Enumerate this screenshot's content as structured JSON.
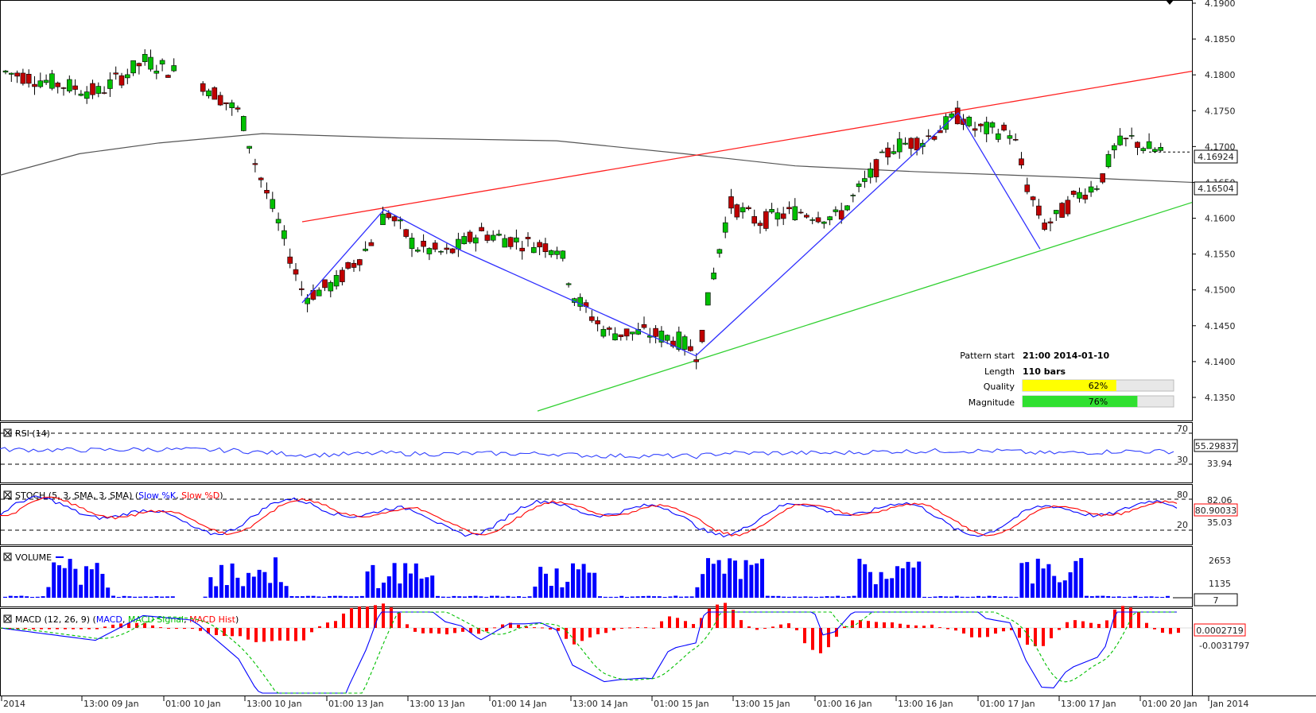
{
  "chart_data": [
    {
      "type": "candlestick",
      "panel": "price",
      "y_ticks": [
        "4.1900",
        "4.1850",
        "4.1800",
        "4.1750",
        "4.1700",
        "4.1650",
        "4.1600",
        "4.1550",
        "4.1500",
        "4.1450",
        "4.1400",
        "4.1350"
      ],
      "ylim": [
        4.133,
        4.19
      ],
      "current_price_label": "4.16924",
      "current_price": 4.16924,
      "ma_label": "4.16504",
      "ma_value": 4.16504,
      "pattern_info": {
        "start_label": "Pattern start",
        "start_value": "21:00 2014-01-10",
        "length_label": "Length",
        "length_value": "110 bars",
        "quality_label": "Quality",
        "quality_value": "62%",
        "quality_fraction": 0.62,
        "magnitude_label": "Magnitude",
        "magnitude_value": "76%",
        "magnitude_fraction": 0.76
      },
      "colors": {
        "up": "#00c000",
        "down": "#c00000",
        "resistance": "#ff2020",
        "support": "#30d030",
        "zigzag": "#3030ff",
        "ma": "#555555",
        "quality": "#ffff00",
        "magnitude": "#30e030"
      }
    },
    {
      "type": "line",
      "panel": "rsi",
      "title": "RSI (14)",
      "levels": [
        "70",
        "30"
      ],
      "value_label": "55.29837",
      "extra_label": "33.94",
      "ylim": [
        0,
        100
      ]
    },
    {
      "type": "line",
      "panel": "stoch",
      "title_prefix": "STOCH (5, 3, SMA, 3, SMA)",
      "series": [
        {
          "name": "Slow %K",
          "color": "#0000ff"
        },
        {
          "name": "Slow %D",
          "color": "#ff0000"
        }
      ],
      "levels": [
        "80",
        "20"
      ],
      "top_label": "82.06",
      "bottom_label": "35.03",
      "value_label": "80.90033",
      "ylim": [
        0,
        100
      ]
    },
    {
      "type": "bar",
      "panel": "volume",
      "title": "VOLUME",
      "y_ticks": [
        "2653",
        "1135"
      ],
      "value_label": "7",
      "color": "#0000ff"
    },
    {
      "type": "line",
      "panel": "macd",
      "title_prefix": "MACD (12, 26, 9)",
      "series": [
        {
          "name": "MACD",
          "color": "#0000ff"
        },
        {
          "name": "MACD Signal",
          "color": "#00c000"
        },
        {
          "name": "MACD Hist",
          "color": "#ff0000"
        }
      ],
      "value_label": "0.0002719",
      "low_label": "-0.0031797"
    }
  ],
  "time_axis": [
    "2014",
    "13:00 09 Jan",
    "01:00 10 Jan",
    "13:00 10 Jan",
    "01:00 13 Jan",
    "13:00 13 Jan",
    "01:00 14 Jan",
    "13:00 14 Jan",
    "01:00 15 Jan",
    "13:00 15 Jan",
    "01:00 16 Jan",
    "13:00 16 Jan",
    "01:00 17 Jan",
    "13:00 17 Jan",
    "01:00 20 Jan",
    "Jan 2014"
  ]
}
